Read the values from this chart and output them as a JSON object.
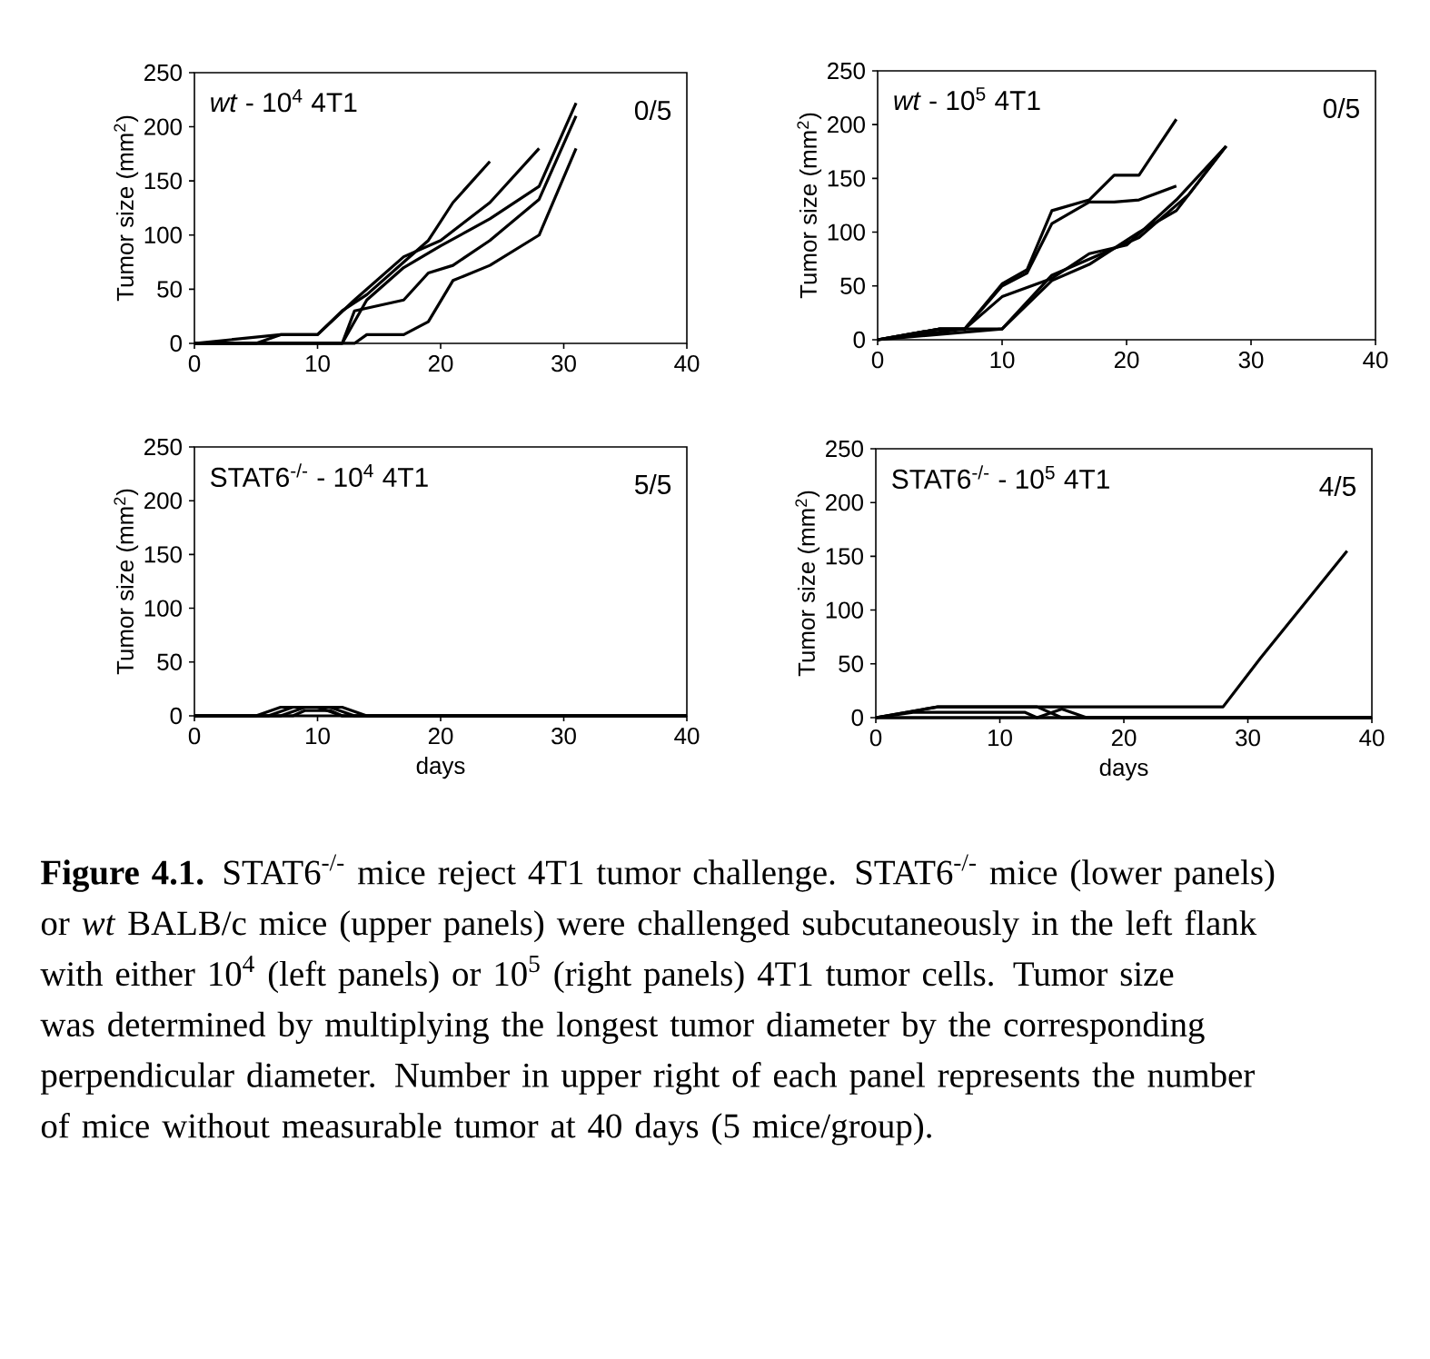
{
  "chart_data": [
    {
      "type": "line",
      "title": "*wt* - 10$^{4}$ 4T1",
      "ylabel": "Tumor size (mm$^{2}$)",
      "xlim": [
        0,
        40
      ],
      "ylim": [
        0,
        250
      ],
      "xticks": [
        0,
        10,
        20,
        30,
        40
      ],
      "yticks": [
        0,
        50,
        100,
        150,
        200,
        250
      ],
      "line_style": "solid",
      "annotations": [
        "0/5"
      ],
      "series": [
        {
          "color": "#000000",
          "x": [
            0,
            5,
            7,
            10,
            12,
            14,
            17,
            19,
            21,
            24
          ],
          "values": [
            0,
            0,
            8,
            8,
            30,
            45,
            75,
            95,
            130,
            168
          ]
        },
        {
          "color": "#000000",
          "x": [
            0,
            7,
            10,
            13,
            17,
            20,
            24,
            28
          ],
          "values": [
            0,
            8,
            8,
            40,
            80,
            95,
            130,
            180
          ]
        },
        {
          "color": "#000000",
          "x": [
            0,
            12,
            14,
            17,
            20,
            24,
            28,
            31
          ],
          "values": [
            0,
            0,
            40,
            70,
            90,
            115,
            145,
            222
          ]
        },
        {
          "color": "#000000",
          "x": [
            0,
            12,
            13,
            15,
            17,
            19,
            21,
            24,
            28,
            31
          ],
          "values": [
            0,
            0,
            30,
            35,
            40,
            65,
            72,
            95,
            133,
            210
          ]
        },
        {
          "color": "#000000",
          "x": [
            0,
            13,
            14,
            17,
            19,
            21,
            24,
            28,
            31
          ],
          "values": [
            0,
            0,
            8,
            8,
            20,
            58,
            72,
            100,
            180
          ]
        }
      ]
    },
    {
      "type": "line",
      "title": "*wt* - 10$^{5}$ 4T1",
      "ylabel": "Tumor size (mm$^{2}$)",
      "xlim": [
        0,
        40
      ],
      "ylim": [
        0,
        250
      ],
      "xticks": [
        0,
        10,
        20,
        30,
        40
      ],
      "yticks": [
        0,
        50,
        100,
        150,
        200,
        250
      ],
      "line_style": "solid",
      "annotations": [
        "0/5"
      ],
      "series": [
        {
          "color": "#000000",
          "x": [
            0,
            5,
            7,
            10,
            12,
            14,
            17,
            19,
            21,
            24
          ],
          "values": [
            0,
            10,
            10,
            52,
            65,
            120,
            130,
            153,
            153,
            205
          ]
        },
        {
          "color": "#000000",
          "x": [
            0,
            5,
            7,
            10,
            12,
            14,
            17,
            19,
            21,
            24
          ],
          "values": [
            0,
            10,
            10,
            50,
            62,
            108,
            128,
            128,
            130,
            143
          ]
        },
        {
          "color": "#000000",
          "x": [
            0,
            7,
            10,
            14,
            17,
            20,
            24,
            28
          ],
          "values": [
            0,
            10,
            40,
            57,
            80,
            88,
            130,
            180
          ]
        },
        {
          "color": "#000000",
          "x": [
            0,
            10,
            14,
            17,
            19,
            21,
            24,
            28
          ],
          "values": [
            0,
            10,
            55,
            70,
            85,
            100,
            120,
            180
          ]
        },
        {
          "color": "#000000",
          "x": [
            0,
            5,
            10,
            14,
            17,
            21,
            25,
            28
          ],
          "values": [
            0,
            10,
            10,
            60,
            75,
            95,
            135,
            180
          ]
        }
      ]
    },
    {
      "type": "line",
      "title": "STAT6$^{-/-}$ - 10$^{4}$ 4T1",
      "xlabel": "days",
      "ylabel": "Tumor size (mm$^{2}$)",
      "xlim": [
        0,
        40
      ],
      "ylim": [
        0,
        250
      ],
      "xticks": [
        0,
        10,
        20,
        30,
        40
      ],
      "yticks": [
        0,
        50,
        100,
        150,
        200,
        250
      ],
      "line_style": "solid",
      "annotations": [
        "5/5"
      ],
      "series": [
        {
          "color": "#000000",
          "x": [
            0,
            5,
            7,
            12,
            14,
            40
          ],
          "values": [
            0,
            0,
            8,
            8,
            0,
            0
          ]
        },
        {
          "color": "#000000",
          "x": [
            0,
            6,
            8,
            11,
            13,
            40
          ],
          "values": [
            0,
            0,
            8,
            8,
            0,
            0
          ]
        },
        {
          "color": "#000000",
          "x": [
            0,
            7,
            9,
            10,
            12,
            40
          ],
          "values": [
            0,
            0,
            8,
            8,
            0,
            0
          ]
        },
        {
          "color": "#000000",
          "x": [
            0,
            8,
            9,
            11,
            12,
            40
          ],
          "values": [
            0,
            0,
            5,
            5,
            0,
            0
          ]
        },
        {
          "color": "#000000",
          "x": [
            0,
            40
          ],
          "values": [
            0,
            0
          ]
        }
      ]
    },
    {
      "type": "line",
      "title": "STAT6$^{-/-}$ - 10$^{5}$ 4T1",
      "xlabel": "days",
      "ylabel": "Tumor size (mm$^{2}$)",
      "xlim": [
        0,
        40
      ],
      "ylim": [
        0,
        250
      ],
      "xticks": [
        0,
        10,
        20,
        30,
        40
      ],
      "yticks": [
        0,
        50,
        100,
        150,
        200,
        250
      ],
      "line_style": "solid",
      "annotations": [
        "4/5",
        "**Figure 4.1.** STAT6$^{-/-}$ mice reject 4T1 tumor challenge.  STAT6$^{-/-}$ mice (lower panels) or *wt* BALB/c mice (upper panels) were challenged subcutaneously in the left flank with either 10$^{4}$ (left panels) or 10$^{5}$ (right panels) 4T1 tumor cells.  Tumor size was determined by multiplying the longest tumor diameter by the corresponding perpendicular diameter.  Number in upper right of each panel represents the number of mice without measurable tumor at 40 days (5 mice/group)."
      ],
      "series": [
        {
          "color": "#000000",
          "x": [
            0,
            5,
            28,
            31,
            38
          ],
          "values": [
            0,
            10,
            10,
            55,
            155
          ]
        },
        {
          "color": "#000000",
          "x": [
            0,
            5,
            13,
            15,
            40
          ],
          "values": [
            0,
            10,
            10,
            0,
            0
          ]
        },
        {
          "color": "#000000",
          "x": [
            0,
            3,
            12,
            13,
            40
          ],
          "values": [
            0,
            5,
            5,
            0,
            0
          ]
        },
        {
          "color": "#000000",
          "x": [
            0,
            13,
            15,
            17,
            40
          ],
          "values": [
            0,
            0,
            8,
            0,
            0
          ]
        },
        {
          "color": "#000000",
          "x": [
            0,
            40
          ],
          "values": [
            0,
            0
          ]
        }
      ]
    }
  ]
}
